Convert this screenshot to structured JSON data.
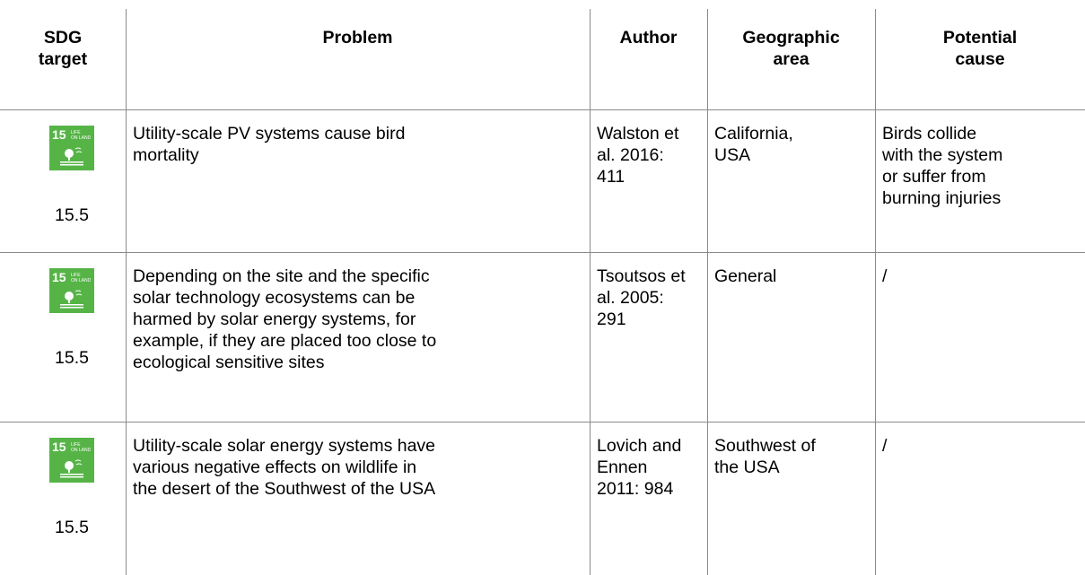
{
  "icon": {
    "number": "15",
    "line1": "LIFE",
    "line2": "ON LAND"
  },
  "table": {
    "header": [
      [
        "SDG",
        "target"
      ],
      [
        "Problem"
      ],
      [
        "Author"
      ],
      [
        "Geographic",
        "area"
      ],
      [
        "Potential",
        "cause"
      ]
    ],
    "rows": [
      {
        "target": "15.5",
        "cells": [
          [
            "Utility-scale PV systems cause bird",
            "mortality"
          ],
          [
            "Walston et",
            "al. 2016:",
            "411"
          ],
          [
            "California,",
            "USA"
          ],
          [
            "Birds collide",
            "with the system",
            "or suffer from",
            "burning injuries"
          ]
        ]
      },
      {
        "target": "15.5",
        "cells": [
          [
            "Depending on the site and the specific",
            "solar technology ecosystems can be",
            "harmed by solar energy systems, for",
            "example, if they are placed too close to",
            "ecological sensitive sites"
          ],
          [
            "Tsoutsos et",
            "al. 2005:",
            "291"
          ],
          [
            "General"
          ],
          [
            "/"
          ]
        ]
      },
      {
        "target": "15.5",
        "cells": [
          [
            "Utility-scale solar energy systems have",
            "various negative effects on wildlife in",
            "the desert of the Southwest of the USA"
          ],
          [
            "Lovich and",
            "Ennen",
            "2011: 984"
          ],
          [
            "Southwest of",
            "the USA"
          ],
          [
            "/"
          ]
        ]
      }
    ]
  }
}
